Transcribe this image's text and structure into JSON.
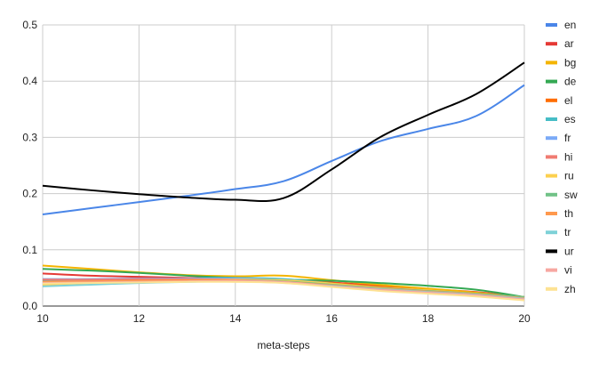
{
  "chart_data": {
    "type": "line",
    "title": "",
    "xlabel": "meta-steps",
    "ylabel": "",
    "xlim": [
      10,
      20
    ],
    "ylim": [
      0,
      0.5
    ],
    "x_ticks": [
      "10",
      "12",
      "14",
      "16",
      "18",
      "20"
    ],
    "y_ticks": [
      "0.0",
      "0.1",
      "0.2",
      "0.3",
      "0.4",
      "0.5"
    ],
    "grid": true,
    "legend_position": "right",
    "x": [
      10,
      11,
      12,
      13,
      14,
      15,
      16,
      17,
      18,
      19,
      20
    ],
    "series": [
      {
        "name": "en",
        "color": "#4a86e8",
        "values": [
          0.163,
          0.174,
          0.185,
          0.196,
          0.208,
          0.222,
          0.258,
          0.293,
          0.315,
          0.338,
          0.393
        ]
      },
      {
        "name": "ar",
        "color": "#e53935",
        "values": [
          0.058,
          0.054,
          0.052,
          0.05,
          0.049,
          0.047,
          0.042,
          0.036,
          0.03,
          0.025,
          0.016
        ]
      },
      {
        "name": "bg",
        "color": "#f4b400",
        "values": [
          0.072,
          0.066,
          0.06,
          0.055,
          0.053,
          0.054,
          0.046,
          0.038,
          0.031,
          0.024,
          0.015
        ]
      },
      {
        "name": "de",
        "color": "#34a853",
        "values": [
          0.066,
          0.063,
          0.059,
          0.054,
          0.05,
          0.047,
          0.045,
          0.041,
          0.036,
          0.029,
          0.016
        ]
      },
      {
        "name": "el",
        "color": "#ff6d01",
        "values": [
          0.044,
          0.045,
          0.046,
          0.047,
          0.048,
          0.047,
          0.041,
          0.034,
          0.028,
          0.022,
          0.015
        ]
      },
      {
        "name": "es",
        "color": "#46bdc6",
        "values": [
          0.046,
          0.047,
          0.048,
          0.049,
          0.05,
          0.048,
          0.04,
          0.032,
          0.026,
          0.02,
          0.012
        ]
      },
      {
        "name": "fr",
        "color": "#7baaf7",
        "values": [
          0.048,
          0.048,
          0.049,
          0.049,
          0.049,
          0.046,
          0.039,
          0.031,
          0.026,
          0.021,
          0.014
        ]
      },
      {
        "name": "hi",
        "color": "#f07b72",
        "values": [
          0.047,
          0.047,
          0.048,
          0.048,
          0.047,
          0.044,
          0.037,
          0.03,
          0.025,
          0.02,
          0.013
        ]
      },
      {
        "name": "ru",
        "color": "#fcd04f",
        "values": [
          0.038,
          0.041,
          0.044,
          0.046,
          0.047,
          0.046,
          0.04,
          0.033,
          0.028,
          0.022,
          0.016
        ]
      },
      {
        "name": "sw",
        "color": "#71c287",
        "values": [
          0.042,
          0.043,
          0.044,
          0.045,
          0.046,
          0.044,
          0.038,
          0.032,
          0.027,
          0.022,
          0.016
        ]
      },
      {
        "name": "th",
        "color": "#ff994d",
        "values": [
          0.043,
          0.044,
          0.045,
          0.046,
          0.046,
          0.043,
          0.037,
          0.031,
          0.026,
          0.021,
          0.014
        ]
      },
      {
        "name": "tr",
        "color": "#7ed1d7",
        "values": [
          0.035,
          0.038,
          0.041,
          0.043,
          0.044,
          0.042,
          0.036,
          0.03,
          0.025,
          0.02,
          0.013
        ]
      },
      {
        "name": "ur",
        "color": "#000000",
        "values": [
          0.214,
          0.206,
          0.199,
          0.193,
          0.189,
          0.192,
          0.243,
          0.3,
          0.34,
          0.377,
          0.433
        ]
      },
      {
        "name": "vi",
        "color": "#f7a7a1",
        "values": [
          0.041,
          0.042,
          0.043,
          0.044,
          0.045,
          0.043,
          0.035,
          0.029,
          0.024,
          0.019,
          0.012
        ]
      },
      {
        "name": "zh",
        "color": "#fde293",
        "values": [
          0.04,
          0.041,
          0.042,
          0.043,
          0.043,
          0.041,
          0.034,
          0.027,
          0.022,
          0.017,
          0.01
        ]
      }
    ]
  }
}
